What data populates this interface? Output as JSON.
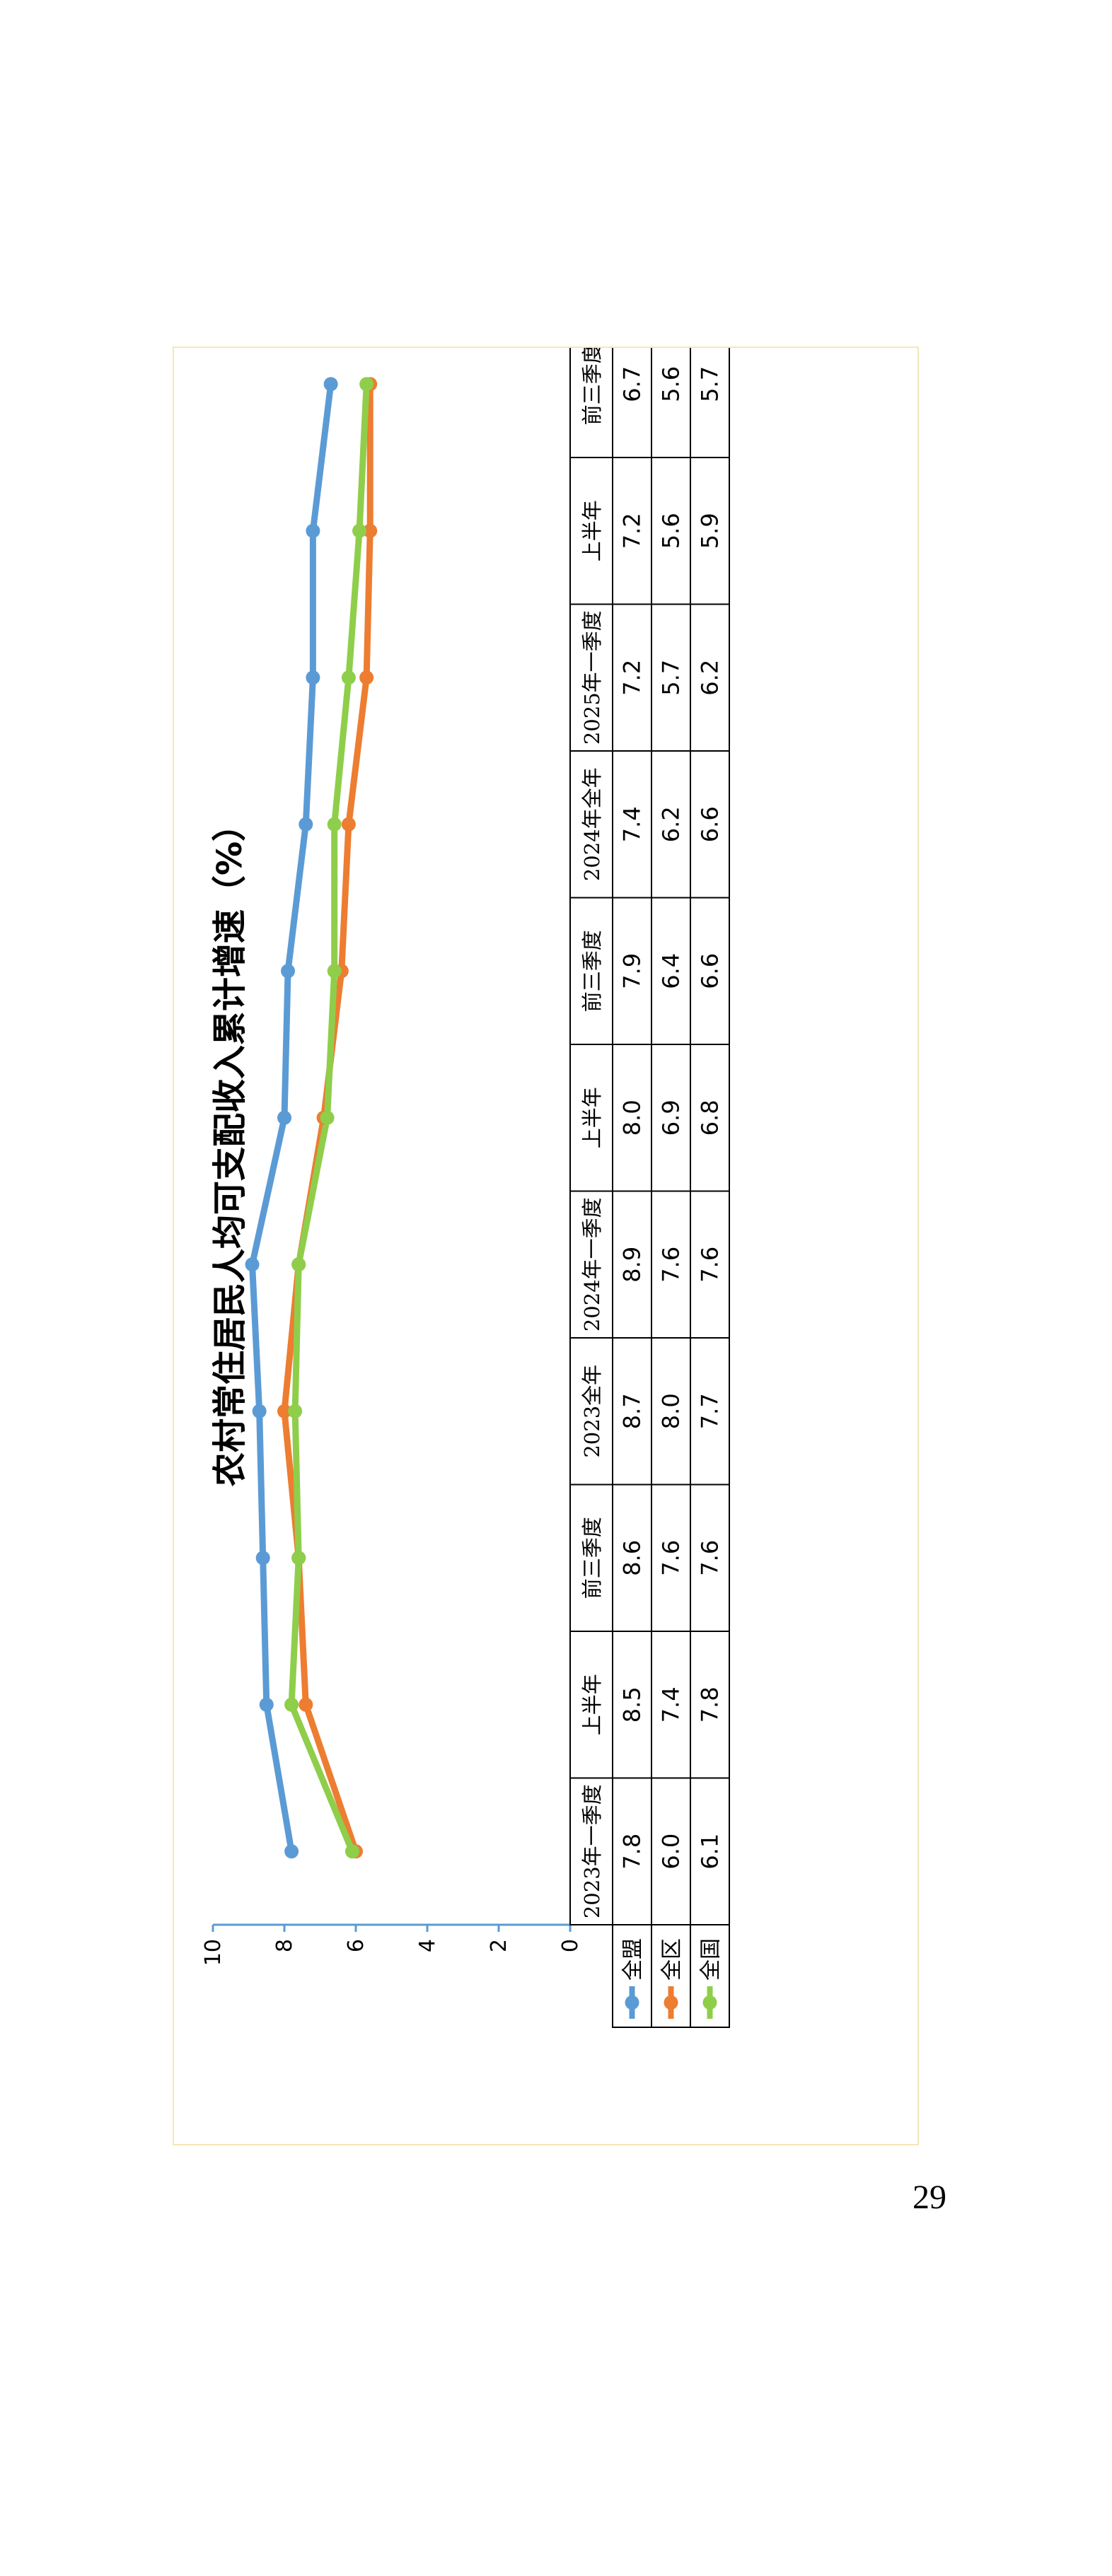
{
  "chart_data": {
    "type": "line",
    "title": "农村常住居民人均可支配收入累计增速（%）",
    "categories": [
      "2023年一季度",
      "上半年",
      "前三季度",
      "2023全年",
      "2024年一季度",
      "上半年",
      "前三季度",
      "2024年全年",
      "2025年一季度",
      "上半年",
      "前三季度"
    ],
    "series": [
      {
        "name": "全盟",
        "color": "#5b9bd5",
        "values": [
          7.8,
          8.5,
          8.6,
          8.7,
          8.9,
          8.0,
          7.9,
          7.4,
          7.2,
          7.2,
          6.7
        ]
      },
      {
        "name": "全区",
        "color": "#ed7d31",
        "values": [
          6.0,
          7.4,
          7.6,
          8.0,
          7.6,
          6.9,
          6.4,
          6.2,
          5.7,
          5.6,
          5.6
        ]
      },
      {
        "name": "全国",
        "color": "#8fce4a",
        "values": [
          6.1,
          7.8,
          7.6,
          7.7,
          7.6,
          6.8,
          6.6,
          6.6,
          6.2,
          5.9,
          5.7
        ]
      }
    ],
    "yticks": [
      "0",
      "2",
      "4",
      "6",
      "8",
      "10"
    ],
    "ylim": [
      0,
      10
    ],
    "grid": false,
    "legend": "data-table",
    "orientation": "rotated-90-counterclockwise"
  },
  "page_number": "29"
}
